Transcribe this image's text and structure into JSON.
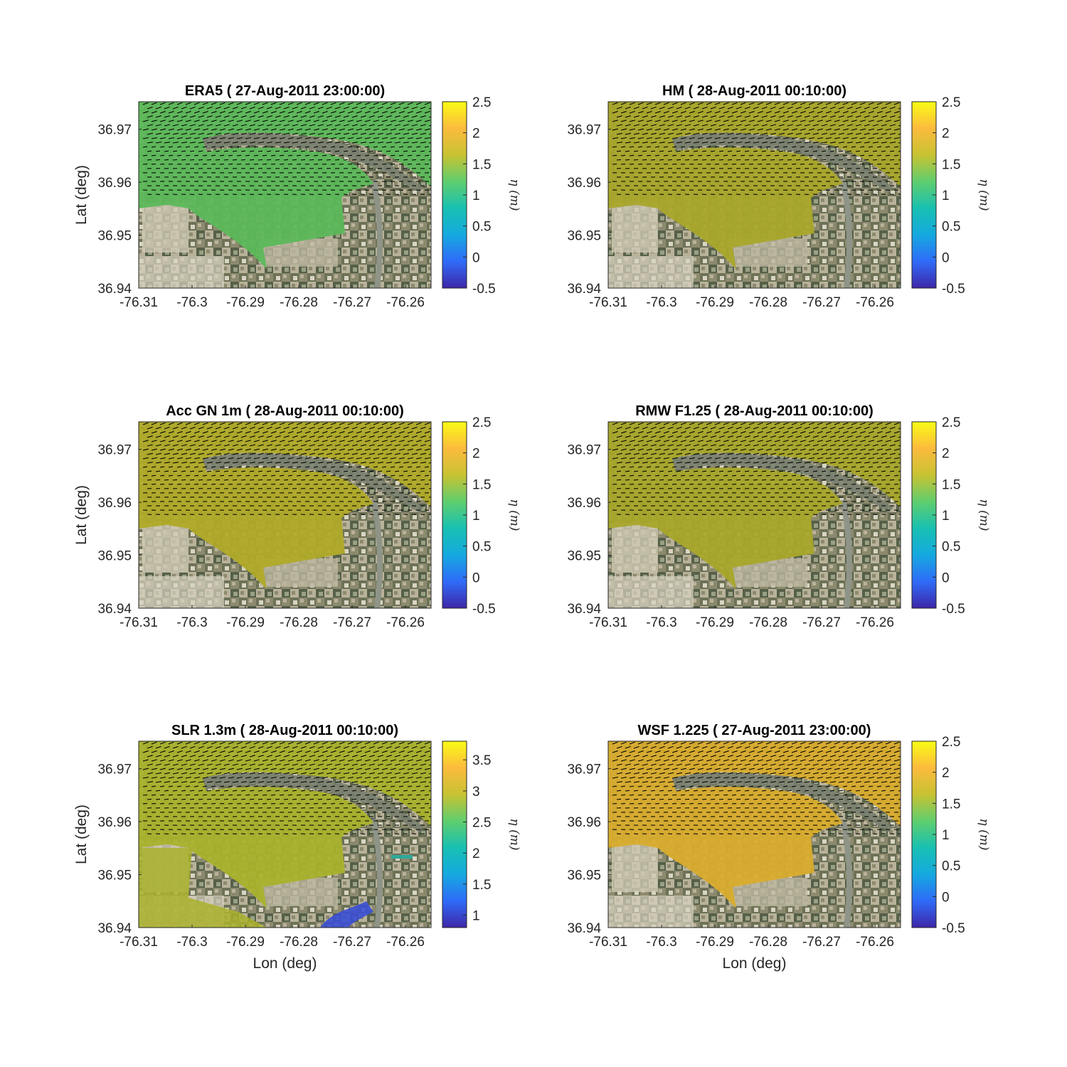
{
  "figure": {
    "xlabel": "Lon (deg)",
    "ylabel": "Lat (deg)",
    "colorbar_label": "η (m)",
    "colormap": "parula",
    "colormap_stops": [
      "#3e26a8",
      "#2f6bf8",
      "#15a9e0",
      "#18c0b2",
      "#5fce6e",
      "#c8c232",
      "#fcbb3d",
      "#f9fb15"
    ],
    "land_colors": [
      "#6d7256",
      "#8c8a6e",
      "#b9b29a",
      "#d9d4c3",
      "#566049",
      "#9aa083"
    ]
  },
  "chart_data": [
    {
      "type": "heatmap",
      "panel": "ERA5",
      "title": "ERA5 ( 27-Aug-2011 23:00:00)",
      "xlabel": "",
      "ylabel": "Lat (deg)",
      "x_ticks": [
        "-76.31",
        "-76.3",
        "-76.29",
        "-76.28",
        "-76.27",
        "-76.26"
      ],
      "x_tick_values": [
        -76.31,
        -76.3,
        -76.29,
        -76.28,
        -76.27,
        -76.26
      ],
      "y_ticks": [
        "36.94",
        "36.95",
        "36.96",
        "36.97"
      ],
      "y_tick_values": [
        36.94,
        36.95,
        36.96,
        36.97
      ],
      "xlim": [
        -76.31,
        -76.2552
      ],
      "ylim": [
        36.94,
        36.9752
      ],
      "clim": [
        -0.5,
        2.5
      ],
      "cbar_ticks": [
        "-0.5",
        "0",
        "0.5",
        "1",
        "1.5",
        "2",
        "2.5"
      ],
      "cbar_tick_values": [
        -0.5,
        0,
        0.5,
        1,
        1.5,
        2,
        2.5
      ],
      "water_level_m": 1.55,
      "water_color": "#5cb85a",
      "flood_extent": "bay",
      "vectors": "wind arrows (black quiver)"
    },
    {
      "type": "heatmap",
      "panel": "HM",
      "title": "HM ( 28-Aug-2011 00:10:00)",
      "xlabel": "",
      "ylabel": "",
      "x_ticks": [
        "-76.31",
        "-76.3",
        "-76.29",
        "-76.28",
        "-76.27",
        "-76.26"
      ],
      "x_tick_values": [
        -76.31,
        -76.3,
        -76.29,
        -76.28,
        -76.27,
        -76.26
      ],
      "y_ticks": [
        "36.94",
        "36.95",
        "36.96",
        "36.97"
      ],
      "y_tick_values": [
        36.94,
        36.95,
        36.96,
        36.97
      ],
      "xlim": [
        -76.31,
        -76.2552
      ],
      "ylim": [
        36.94,
        36.9752
      ],
      "clim": [
        -0.5,
        2.5
      ],
      "cbar_ticks": [
        "-0.5",
        "0",
        "0.5",
        "1",
        "1.5",
        "2",
        "2.5"
      ],
      "cbar_tick_values": [
        -0.5,
        0,
        0.5,
        1,
        1.5,
        2,
        2.5
      ],
      "water_level_m": 1.85,
      "water_color": "#a9a72a",
      "flood_extent": "bay",
      "vectors": "wind arrows (black quiver)"
    },
    {
      "type": "heatmap",
      "panel": "Acc GN 1m",
      "title": "Acc GN 1m ( 28-Aug-2011 00:10:00)",
      "xlabel": "",
      "ylabel": "Lat (deg)",
      "x_ticks": [
        "-76.31",
        "-76.3",
        "-76.29",
        "-76.28",
        "-76.27",
        "-76.26"
      ],
      "x_tick_values": [
        -76.31,
        -76.3,
        -76.29,
        -76.28,
        -76.27,
        -76.26
      ],
      "y_ticks": [
        "36.94",
        "36.95",
        "36.96",
        "36.97"
      ],
      "y_tick_values": [
        36.94,
        36.95,
        36.96,
        36.97
      ],
      "xlim": [
        -76.31,
        -76.2552
      ],
      "ylim": [
        36.94,
        36.9752
      ],
      "clim": [
        -0.5,
        2.5
      ],
      "cbar_ticks": [
        "-0.5",
        "0",
        "0.5",
        "1",
        "1.5",
        "2",
        "2.5"
      ],
      "cbar_tick_values": [
        -0.5,
        0,
        0.5,
        1,
        1.5,
        2,
        2.5
      ],
      "water_level_m": 1.9,
      "water_color": "#b0aa28",
      "flood_extent": "bay",
      "vectors": "wind arrows (black quiver)"
    },
    {
      "type": "heatmap",
      "panel": "RMW F1.25",
      "title": "RMW F1.25 ( 28-Aug-2011 00:10:00)",
      "xlabel": "",
      "ylabel": "",
      "x_ticks": [
        "-76.31",
        "-76.3",
        "-76.29",
        "-76.28",
        "-76.27",
        "-76.26"
      ],
      "x_tick_values": [
        -76.31,
        -76.3,
        -76.29,
        -76.28,
        -76.27,
        -76.26
      ],
      "y_ticks": [
        "36.94",
        "36.95",
        "36.96",
        "36.97"
      ],
      "y_tick_values": [
        36.94,
        36.95,
        36.96,
        36.97
      ],
      "xlim": [
        -76.31,
        -76.2552
      ],
      "ylim": [
        36.94,
        36.9752
      ],
      "clim": [
        -0.5,
        2.5
      ],
      "cbar_ticks": [
        "-0.5",
        "0",
        "0.5",
        "1",
        "1.5",
        "2",
        "2.5"
      ],
      "cbar_tick_values": [
        -0.5,
        0,
        0.5,
        1,
        1.5,
        2,
        2.5
      ],
      "water_level_m": 1.85,
      "water_color": "#a8a72a",
      "flood_extent": "bay",
      "vectors": "wind arrows (black quiver)"
    },
    {
      "type": "heatmap",
      "panel": "SLR 1.3m",
      "title": "SLR 1.3m ( 28-Aug-2011 00:10:00)",
      "xlabel": "Lon (deg)",
      "ylabel": "Lat (deg)",
      "x_ticks": [
        "-76.31",
        "-76.3",
        "-76.29",
        "-76.28",
        "-76.27",
        "-76.26"
      ],
      "x_tick_values": [
        -76.31,
        -76.3,
        -76.29,
        -76.28,
        -76.27,
        -76.26
      ],
      "y_ticks": [
        "36.94",
        "36.95",
        "36.96",
        "36.97"
      ],
      "y_tick_values": [
        36.94,
        36.95,
        36.96,
        36.97
      ],
      "xlim": [
        -76.31,
        -76.2552
      ],
      "ylim": [
        36.94,
        36.9752
      ],
      "clim": [
        0.8,
        3.8
      ],
      "cbar_ticks": [
        "1",
        "1.5",
        "2",
        "2.5",
        "3",
        "3.5"
      ],
      "cbar_tick_values": [
        1,
        1.5,
        2,
        2.5,
        3,
        3.5
      ],
      "water_level_m": 3.15,
      "water_color": "#a9b22c",
      "flood_extent": "bay plus inland flooding",
      "vectors": "wind arrows (black quiver)"
    },
    {
      "type": "heatmap",
      "panel": "WSF 1.225",
      "title": "WSF 1.225 ( 27-Aug-2011 23:00:00)",
      "xlabel": "Lon (deg)",
      "ylabel": "",
      "x_ticks": [
        "-76.31",
        "-76.3",
        "-76.29",
        "-76.28",
        "-76.27",
        "-76.26"
      ],
      "x_tick_values": [
        -76.31,
        -76.3,
        -76.29,
        -76.28,
        -76.27,
        -76.26
      ],
      "y_ticks": [
        "36.94",
        "36.95",
        "36.96",
        "36.97"
      ],
      "y_tick_values": [
        36.94,
        36.95,
        36.96,
        36.97
      ],
      "xlim": [
        -76.31,
        -76.2552
      ],
      "ylim": [
        36.94,
        36.9752
      ],
      "clim": [
        -0.5,
        2.5
      ],
      "cbar_ticks": [
        "-0.5",
        "0",
        "0.5",
        "1",
        "1.5",
        "2",
        "2.5"
      ],
      "cbar_tick_values": [
        -0.5,
        0,
        0.5,
        1,
        1.5,
        2,
        2.5
      ],
      "water_level_m": 2.1,
      "water_color": "#d9ac2d",
      "flood_extent": "bay",
      "vectors": "wind arrows (black quiver)"
    }
  ]
}
